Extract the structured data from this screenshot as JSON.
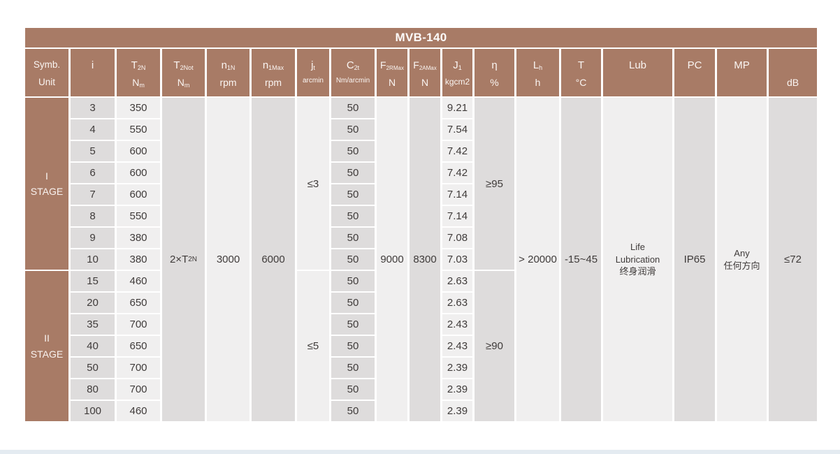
{
  "title": "MVB-140",
  "colors": {
    "header_brown": "#a87b66",
    "cell_dark": "#dedcdc",
    "cell_light": "#f0efef",
    "text_dark": "#3f3b3a",
    "header_text": "#faf5f2",
    "bottom_strip": "#e4ebf1"
  },
  "header": {
    "corner": {
      "line1": "Symb.",
      "line2": "Unit"
    },
    "cols": [
      {
        "sym": "i"
      },
      {
        "sym": "T",
        "sub": "2N",
        "unit": "N",
        "usub": "m"
      },
      {
        "sym": "T",
        "sub": "2Not",
        "unit": "N",
        "usub": "m"
      },
      {
        "sym": "n",
        "sub": "1N",
        "unit": "rpm"
      },
      {
        "sym": "n",
        "sub": "1Max",
        "unit": "rpm"
      },
      {
        "sym": "j",
        "sub": "t",
        "unit": "arcmin"
      },
      {
        "sym": "C",
        "sub": "2t",
        "unit": "Nm/arcmin"
      },
      {
        "sym": "F",
        "sub": "2RMax",
        "unit": "N"
      },
      {
        "sym": "F",
        "sub": "2AMax",
        "unit": "N"
      },
      {
        "sym": "J",
        "sub": "1",
        "unit": "kgcm2"
      },
      {
        "sym": "η",
        "unit": "%"
      },
      {
        "sym": "L",
        "sub": "h",
        "unit": "h"
      },
      {
        "sym": "T",
        "unit": "°C"
      },
      {
        "sym": "Lub"
      },
      {
        "sym": "PC"
      },
      {
        "sym": "MP"
      },
      {
        "unit": "dB"
      }
    ]
  },
  "stages": [
    {
      "numeral": "I",
      "label": "STAGE",
      "jt": "≤3",
      "eta": "≥95",
      "rows": [
        {
          "i": "3",
          "t2n": "350",
          "c2t": "50",
          "j1": "9.21"
        },
        {
          "i": "4",
          "t2n": "550",
          "c2t": "50",
          "j1": "7.54"
        },
        {
          "i": "5",
          "t2n": "600",
          "c2t": "50",
          "j1": "7.42"
        },
        {
          "i": "6",
          "t2n": "600",
          "c2t": "50",
          "j1": "7.42"
        },
        {
          "i": "7",
          "t2n": "600",
          "c2t": "50",
          "j1": "7.14"
        },
        {
          "i": "8",
          "t2n": "550",
          "c2t": "50",
          "j1": "7.14"
        },
        {
          "i": "9",
          "t2n": "380",
          "c2t": "50",
          "j1": "7.08"
        },
        {
          "i": "10",
          "t2n": "380",
          "c2t": "50",
          "j1": "7.03"
        }
      ]
    },
    {
      "numeral": "II",
      "label": "STAGE",
      "jt": "≤5",
      "eta": "≥90",
      "rows": [
        {
          "i": "15",
          "t2n": "460",
          "c2t": "50",
          "j1": "2.63"
        },
        {
          "i": "20",
          "t2n": "650",
          "c2t": "50",
          "j1": "2.63"
        },
        {
          "i": "35",
          "t2n": "700",
          "c2t": "50",
          "j1": "2.43"
        },
        {
          "i": "40",
          "t2n": "650",
          "c2t": "50",
          "j1": "2.43"
        },
        {
          "i": "50",
          "t2n": "700",
          "c2t": "50",
          "j1": "2.39"
        },
        {
          "i": "80",
          "t2n": "700",
          "c2t": "50",
          "j1": "2.39"
        },
        {
          "i": "100",
          "t2n": "460",
          "c2t": "50",
          "j1": "2.39"
        }
      ]
    }
  ],
  "merged": {
    "t2not": {
      "pre": "2×T",
      "sub": "2N"
    },
    "n1n": "3000",
    "n1max": "6000",
    "f2rmax": "9000",
    "f2amax": "8300",
    "lh": "> 20000",
    "t": "-15~45",
    "lub": [
      "Life",
      "Lubrication",
      "终身润滑"
    ],
    "pc": "IP65",
    "mp": [
      "Any",
      "任何方向"
    ],
    "db": "≤72"
  }
}
